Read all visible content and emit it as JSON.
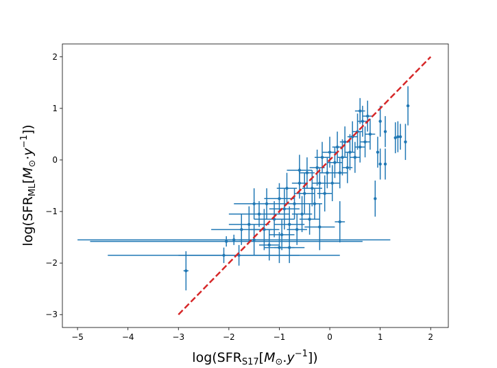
{
  "chart_data": {
    "type": "scatter",
    "title": "",
    "xlabel": {
      "prefix": "log(SFR",
      "sub": "S17",
      "open": "[",
      "M": "M",
      "odot": "⊙",
      "dot": ".",
      "y": "y",
      "exp": "−1",
      "suffix": "])"
    },
    "ylabel": {
      "prefix": "log(SFR",
      "sub": "ML",
      "open": "[",
      "M": "M",
      "odot": "⊙",
      "dot": "·",
      "y": "y",
      "exp": "−1",
      "suffix": "])"
    },
    "xlim": [
      -5.3,
      2.35
    ],
    "ylim": [
      -3.25,
      2.25
    ],
    "xticks": [
      -5,
      -4,
      -3,
      -2,
      -1,
      0,
      1,
      2
    ],
    "xtick_labels": [
      "−5",
      "−4",
      "−3",
      "−2",
      "−1",
      "0",
      "1",
      "2"
    ],
    "yticks": [
      -3,
      -2,
      -1,
      0,
      1,
      2
    ],
    "ytick_labels": [
      "−3",
      "−2",
      "−1",
      "0",
      "1",
      "2"
    ],
    "grid": false,
    "marker_color": "#1f77b4",
    "reference_line": {
      "x": [
        -3,
        2
      ],
      "y": [
        -3,
        2
      ],
      "color": "#d62728",
      "style": "dashed"
    },
    "series": [
      {
        "points": [
          [
            -2.85,
            -2.15,
            0.05,
            0.38
          ],
          [
            -2.1,
            -1.85,
            2.3,
            0.15
          ],
          [
            -2.05,
            -1.58,
            2.7,
            0.1
          ],
          [
            -1.9,
            -1.55,
            3.1,
            0.1
          ],
          [
            -1.8,
            -1.85,
            1.2,
            0.2
          ],
          [
            -1.75,
            -1.35,
            0.6,
            0.3
          ],
          [
            -1.6,
            -1.25,
            0.4,
            0.35
          ],
          [
            -1.5,
            -1.55,
            0.3,
            0.3
          ],
          [
            -1.4,
            -1.05,
            0.6,
            0.25
          ],
          [
            -1.3,
            -1.35,
            0.3,
            0.4
          ],
          [
            -1.25,
            -0.85,
            0.5,
            0.3
          ],
          [
            -1.2,
            -1.65,
            0.2,
            0.3
          ],
          [
            -1.1,
            -1.15,
            0.4,
            0.35
          ],
          [
            -1.0,
            -0.75,
            0.3,
            0.3
          ],
          [
            -0.95,
            -1.45,
            0.25,
            0.3
          ],
          [
            -0.9,
            -0.95,
            0.3,
            0.4
          ],
          [
            -0.85,
            -0.55,
            0.2,
            0.3
          ],
          [
            -0.8,
            -1.25,
            0.3,
            0.35
          ],
          [
            -0.7,
            -0.85,
            0.25,
            0.3
          ],
          [
            -0.65,
            -1.35,
            0.2,
            0.3
          ],
          [
            -0.6,
            -0.45,
            0.15,
            0.3
          ],
          [
            -0.55,
            -1.05,
            0.2,
            0.35
          ],
          [
            -0.5,
            -0.65,
            0.2,
            0.4
          ],
          [
            -0.45,
            -0.25,
            0.15,
            0.3
          ],
          [
            -0.4,
            -1.15,
            0.2,
            0.3
          ],
          [
            -0.35,
            -0.55,
            0.2,
            0.35
          ],
          [
            -0.3,
            -0.85,
            0.15,
            0.3
          ],
          [
            -0.25,
            -0.15,
            0.15,
            0.35
          ],
          [
            -0.2,
            -0.45,
            0.15,
            0.3
          ],
          [
            -0.15,
            0.05,
            0.15,
            0.3
          ],
          [
            -0.1,
            -0.65,
            0.15,
            0.35
          ],
          [
            -0.05,
            -0.25,
            0.15,
            0.3
          ],
          [
            0.0,
            0.15,
            0.15,
            0.3
          ],
          [
            0.05,
            -0.45,
            0.15,
            0.35
          ],
          [
            0.1,
            -0.05,
            0.15,
            0.3
          ],
          [
            0.15,
            0.25,
            0.1,
            0.3
          ],
          [
            0.2,
            -0.25,
            0.15,
            0.3
          ],
          [
            0.25,
            0.05,
            0.1,
            0.35
          ],
          [
            0.3,
            0.35,
            0.1,
            0.3
          ],
          [
            0.35,
            -0.15,
            0.1,
            0.3
          ],
          [
            0.4,
            0.15,
            0.1,
            0.35
          ],
          [
            0.45,
            0.45,
            0.1,
            0.3
          ],
          [
            0.5,
            0.05,
            0.1,
            0.3
          ],
          [
            0.55,
            0.55,
            0.1,
            0.35
          ],
          [
            0.6,
            0.25,
            0.1,
            0.3
          ],
          [
            0.65,
            0.75,
            0.1,
            0.3
          ],
          [
            0.7,
            0.35,
            0.1,
            0.3
          ],
          [
            0.75,
            0.85,
            0.1,
            0.3
          ],
          [
            0.8,
            0.5,
            0.1,
            0.3
          ],
          [
            0.9,
            -0.75,
            0.0,
            0.35
          ],
          [
            0.95,
            0.15,
            0.0,
            0.3
          ],
          [
            1.0,
            -0.08,
            0.0,
            0.3
          ],
          [
            1.0,
            0.75,
            0.0,
            0.3
          ],
          [
            1.1,
            0.55,
            0.0,
            0.3
          ],
          [
            1.1,
            -0.08,
            0.0,
            0.3
          ],
          [
            1.3,
            0.43,
            0.0,
            0.3
          ],
          [
            1.35,
            0.45,
            0.0,
            0.3
          ],
          [
            1.4,
            0.45,
            0.0,
            0.25
          ],
          [
            1.5,
            0.35,
            0.0,
            0.35
          ],
          [
            1.55,
            1.05,
            0.0,
            0.38
          ],
          [
            -0.2,
            -1.3,
            0.3,
            0.45
          ],
          [
            -0.6,
            -0.2,
            0.25,
            0.3
          ],
          [
            -1.0,
            -1.7,
            0.3,
            0.3
          ],
          [
            0.2,
            -1.2,
            0.1,
            0.4
          ],
          [
            0.6,
            0.95,
            0.1,
            0.25
          ],
          [
            -1.5,
            -0.85,
            0.4,
            0.3
          ],
          [
            -0.8,
            -1.7,
            0.3,
            0.3
          ]
        ]
      }
    ]
  }
}
